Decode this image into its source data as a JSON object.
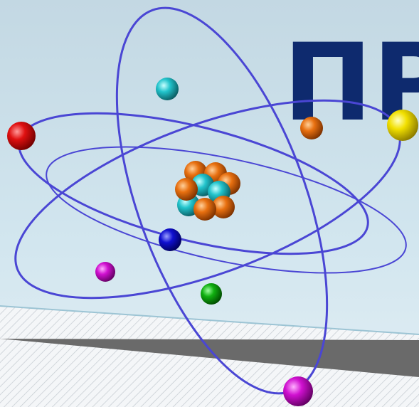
{
  "title": "ПР"
}
